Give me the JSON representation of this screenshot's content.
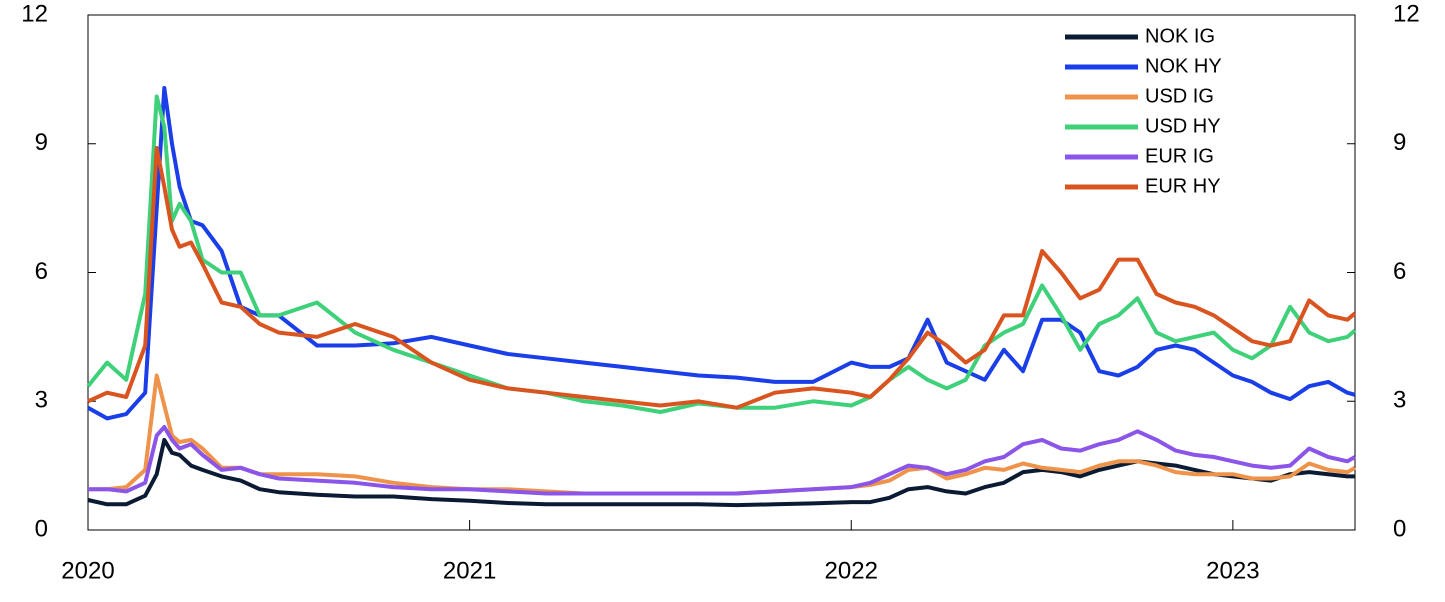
{
  "chart_data": {
    "type": "line",
    "x": [
      2020.0,
      2020.05,
      2020.1,
      2020.15,
      2020.18,
      2020.2,
      2020.22,
      2020.24,
      2020.27,
      2020.3,
      2020.35,
      2020.4,
      2020.45,
      2020.5,
      2020.6,
      2020.7,
      2020.8,
      2020.9,
      2021.0,
      2021.1,
      2021.2,
      2021.3,
      2021.4,
      2021.5,
      2021.6,
      2021.7,
      2021.8,
      2021.9,
      2022.0,
      2022.05,
      2022.1,
      2022.15,
      2022.2,
      2022.25,
      2022.3,
      2022.35,
      2022.4,
      2022.45,
      2022.5,
      2022.55,
      2022.6,
      2022.65,
      2022.7,
      2022.75,
      2022.8,
      2022.85,
      2022.9,
      2022.95,
      2023.0,
      2023.05,
      2023.1,
      2023.15,
      2023.2,
      2023.25,
      2023.3,
      2023.32
    ],
    "xlim": [
      2020,
      2023.32
    ],
    "xticks": [
      2020,
      2021,
      2022,
      2023
    ],
    "ylim": [
      0,
      12
    ],
    "yticks": [
      0,
      3,
      6,
      9,
      12
    ],
    "y2lim": [
      0,
      12
    ],
    "y2ticks": [
      0,
      3,
      6,
      9,
      12
    ],
    "legend": "upper-right",
    "series": [
      {
        "name": "NOK IG",
        "color": "#0b1b33",
        "values": [
          0.7,
          0.6,
          0.6,
          0.8,
          1.3,
          2.1,
          1.8,
          1.75,
          1.5,
          1.4,
          1.25,
          1.15,
          0.95,
          0.88,
          0.82,
          0.78,
          0.78,
          0.72,
          0.68,
          0.63,
          0.6,
          0.6,
          0.6,
          0.6,
          0.6,
          0.58,
          0.6,
          0.62,
          0.65,
          0.65,
          0.75,
          0.95,
          1.0,
          0.9,
          0.85,
          1.0,
          1.1,
          1.35,
          1.4,
          1.35,
          1.25,
          1.4,
          1.5,
          1.6,
          1.55,
          1.5,
          1.4,
          1.3,
          1.25,
          1.2,
          1.15,
          1.3,
          1.35,
          1.3,
          1.25,
          1.25
        ]
      },
      {
        "name": "NOK HY",
        "color": "#1a3ee8",
        "values": [
          2.85,
          2.6,
          2.7,
          3.2,
          7.5,
          10.3,
          9,
          8,
          7.2,
          7.1,
          6.5,
          5.2,
          5.0,
          5.0,
          4.3,
          4.3,
          4.35,
          4.5,
          4.3,
          4.1,
          4.0,
          3.9,
          3.8,
          3.7,
          3.6,
          3.55,
          3.45,
          3.45,
          3.9,
          3.8,
          3.8,
          4.0,
          4.9,
          3.9,
          3.7,
          3.5,
          4.2,
          3.7,
          4.9,
          4.9,
          4.6,
          3.7,
          3.6,
          3.8,
          4.2,
          4.3,
          4.2,
          3.9,
          3.6,
          3.45,
          3.2,
          3.05,
          3.35,
          3.45,
          3.2,
          3.15
        ]
      },
      {
        "name": "USD IG",
        "color": "#f0934a",
        "values": [
          0.95,
          0.95,
          1.0,
          1.4,
          3.6,
          2.9,
          2.2,
          2.05,
          2.1,
          1.9,
          1.45,
          1.45,
          1.3,
          1.3,
          1.3,
          1.25,
          1.1,
          1.0,
          0.95,
          0.95,
          0.9,
          0.85,
          0.85,
          0.85,
          0.85,
          0.85,
          0.9,
          0.95,
          1.0,
          1.05,
          1.15,
          1.4,
          1.45,
          1.2,
          1.3,
          1.45,
          1.4,
          1.55,
          1.45,
          1.4,
          1.35,
          1.5,
          1.6,
          1.6,
          1.5,
          1.35,
          1.3,
          1.3,
          1.3,
          1.2,
          1.2,
          1.25,
          1.55,
          1.4,
          1.35,
          1.45
        ]
      },
      {
        "name": "USD HY",
        "color": "#3fd07a",
        "values": [
          3.35,
          3.9,
          3.5,
          5.5,
          10.1,
          9.4,
          7.2,
          7.6,
          7.2,
          6.3,
          6.0,
          6.0,
          5.0,
          5.0,
          5.3,
          4.6,
          4.2,
          3.9,
          3.6,
          3.3,
          3.2,
          3.0,
          2.9,
          2.75,
          2.95,
          2.85,
          2.85,
          3.0,
          2.9,
          3.1,
          3.5,
          3.8,
          3.5,
          3.3,
          3.5,
          4.3,
          4.6,
          4.8,
          5.7,
          5.0,
          4.2,
          4.8,
          5.0,
          5.4,
          4.6,
          4.4,
          4.5,
          4.6,
          4.2,
          4.0,
          4.3,
          5.2,
          4.6,
          4.4,
          4.5,
          4.65
        ]
      },
      {
        "name": "EUR IG",
        "color": "#8a55e8",
        "values": [
          0.95,
          0.95,
          0.9,
          1.1,
          2.2,
          2.4,
          2.1,
          1.9,
          2.0,
          1.75,
          1.4,
          1.45,
          1.3,
          1.2,
          1.15,
          1.1,
          1.0,
          0.95,
          0.95,
          0.9,
          0.85,
          0.85,
          0.85,
          0.85,
          0.85,
          0.85,
          0.9,
          0.95,
          1.0,
          1.1,
          1.3,
          1.5,
          1.45,
          1.3,
          1.4,
          1.6,
          1.7,
          2.0,
          2.1,
          1.9,
          1.85,
          2.0,
          2.1,
          2.3,
          2.1,
          1.85,
          1.75,
          1.7,
          1.6,
          1.5,
          1.45,
          1.5,
          1.9,
          1.7,
          1.6,
          1.7
        ]
      },
      {
        "name": "EUR HY",
        "color": "#d9541e",
        "values": [
          3.0,
          3.2,
          3.1,
          4.3,
          8.9,
          8.0,
          7.0,
          6.6,
          6.7,
          6.2,
          5.3,
          5.2,
          4.8,
          4.6,
          4.5,
          4.8,
          4.5,
          3.9,
          3.5,
          3.3,
          3.2,
          3.1,
          3.0,
          2.9,
          3.0,
          2.85,
          3.2,
          3.3,
          3.2,
          3.1,
          3.5,
          4.0,
          4.6,
          4.3,
          3.9,
          4.2,
          5.0,
          5.0,
          6.5,
          6.0,
          5.4,
          5.6,
          6.3,
          6.3,
          5.5,
          5.3,
          5.2,
          5.0,
          4.7,
          4.4,
          4.3,
          4.4,
          5.35,
          5.0,
          4.9,
          5.05
        ]
      }
    ]
  }
}
